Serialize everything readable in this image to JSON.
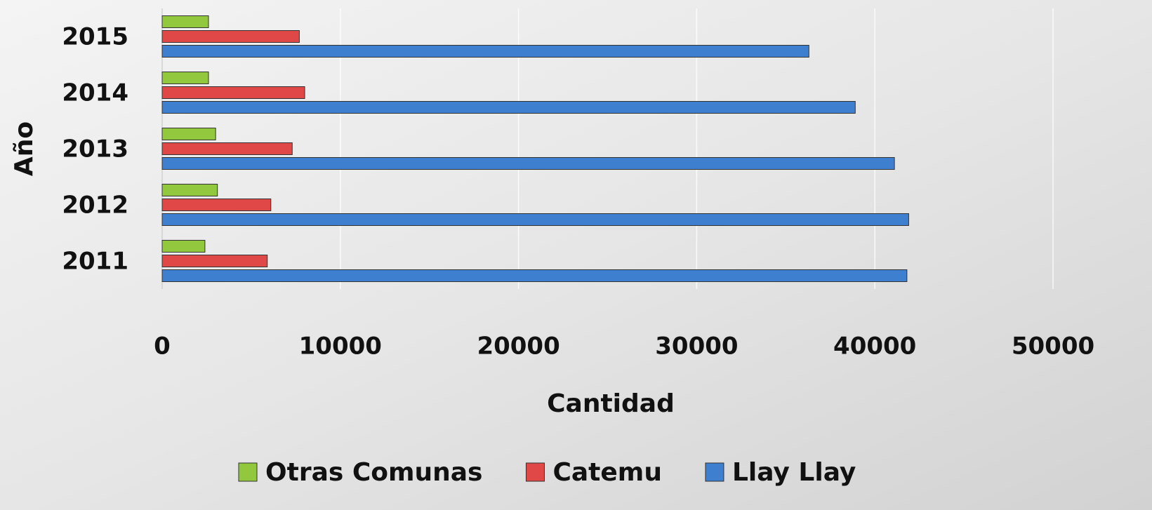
{
  "chart_data": {
    "type": "hbar",
    "x_label": "Cantidad",
    "y_label": "Año",
    "categories": [
      "2011",
      "2012",
      "2013",
      "2014",
      "2015"
    ],
    "series": [
      {
        "name": "Otras Comunas",
        "color": "#92c83e",
        "values": [
          2400,
          3100,
          3000,
          2600,
          2600
        ]
      },
      {
        "name": "Catemu",
        "color": "#e04848",
        "values": [
          5900,
          6100,
          7300,
          8000,
          7700
        ]
      },
      {
        "name": "Llay Llay",
        "color": "#3f7fd0",
        "values": [
          41800,
          41900,
          41100,
          38900,
          36300
        ]
      }
    ],
    "xlim": [
      0,
      50000
    ],
    "xticks": [
      0,
      10000,
      20000,
      30000,
      40000,
      50000
    ],
    "grid": true
  }
}
